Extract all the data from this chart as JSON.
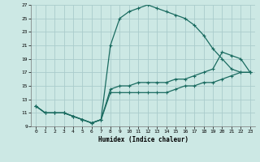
{
  "xlabel": "Humidex (Indice chaleur)",
  "xlim": [
    -0.5,
    23.5
  ],
  "ylim": [
    9,
    27
  ],
  "xticks": [
    0,
    1,
    2,
    3,
    4,
    5,
    6,
    7,
    8,
    9,
    10,
    11,
    12,
    13,
    14,
    15,
    16,
    17,
    18,
    19,
    20,
    21,
    22,
    23
  ],
  "yticks": [
    9,
    11,
    13,
    15,
    17,
    19,
    21,
    23,
    25,
    27
  ],
  "bg_color": "#cce8e4",
  "grid_color": "#aacccc",
  "line_color": "#1a6b60",
  "line1_x": [
    0,
    1,
    2,
    3,
    4,
    5,
    6,
    7,
    8,
    9,
    10,
    11,
    12,
    13,
    14,
    15,
    16,
    17,
    18,
    19,
    20,
    21,
    22,
    23
  ],
  "line1_y": [
    12,
    11,
    11,
    11,
    10.5,
    10,
    9.5,
    10,
    21,
    25,
    26,
    26.5,
    27,
    26.5,
    26,
    25.5,
    25,
    24,
    22.5,
    20.5,
    19,
    17.5,
    17,
    17
  ],
  "line2_x": [
    0,
    1,
    2,
    3,
    4,
    5,
    6,
    7,
    8,
    9,
    10,
    11,
    12,
    13,
    14,
    15,
    16,
    17,
    18,
    19,
    20,
    21,
    22,
    23
  ],
  "line2_y": [
    12,
    11,
    11,
    11,
    10.5,
    10,
    9.5,
    10,
    14.5,
    15,
    15,
    15.5,
    15.5,
    15.5,
    15.5,
    16,
    16,
    16.5,
    17,
    17.5,
    20,
    19.5,
    19,
    17
  ],
  "line3_x": [
    0,
    1,
    2,
    3,
    4,
    5,
    6,
    7,
    8,
    9,
    10,
    11,
    12,
    13,
    14,
    15,
    16,
    17,
    18,
    19,
    20,
    21,
    22,
    23
  ],
  "line3_y": [
    12,
    11,
    11,
    11,
    10.5,
    10,
    9.5,
    10,
    14,
    14,
    14,
    14,
    14,
    14,
    14,
    14.5,
    15,
    15,
    15.5,
    15.5,
    16,
    16.5,
    17,
    17
  ]
}
